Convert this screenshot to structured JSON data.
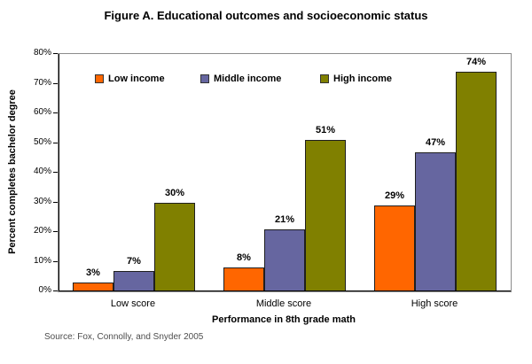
{
  "chart_data": {
    "type": "bar",
    "title": "Figure A. Educational outcomes and socioeconomic status",
    "categories": [
      "Low score",
      "Middle score",
      "High score"
    ],
    "series": [
      {
        "name": "Low income",
        "color": "#FF6600",
        "values": [
          3,
          8,
          29
        ]
      },
      {
        "name": "Middle income",
        "color": "#6666A0",
        "values": [
          7,
          21,
          47
        ]
      },
      {
        "name": "High income",
        "color": "#808000",
        "values": [
          30,
          51,
          74
        ]
      }
    ],
    "xlabel": "Performance in 8th grade math",
    "ylabel": "Percent completes bachelor degree",
    "ylim": [
      0,
      80
    ],
    "ytick_step": 10,
    "ytick_suffix": "%",
    "value_label_suffix": "%",
    "grid": false,
    "legend_position": "inside-top-horizontal",
    "bar_border_color": "#1F1F1F",
    "plot_border_color": "#8C8C8C",
    "axis_color": "#000000"
  },
  "source_note": "Source: Fox, Connolly, and Snyder 2005"
}
